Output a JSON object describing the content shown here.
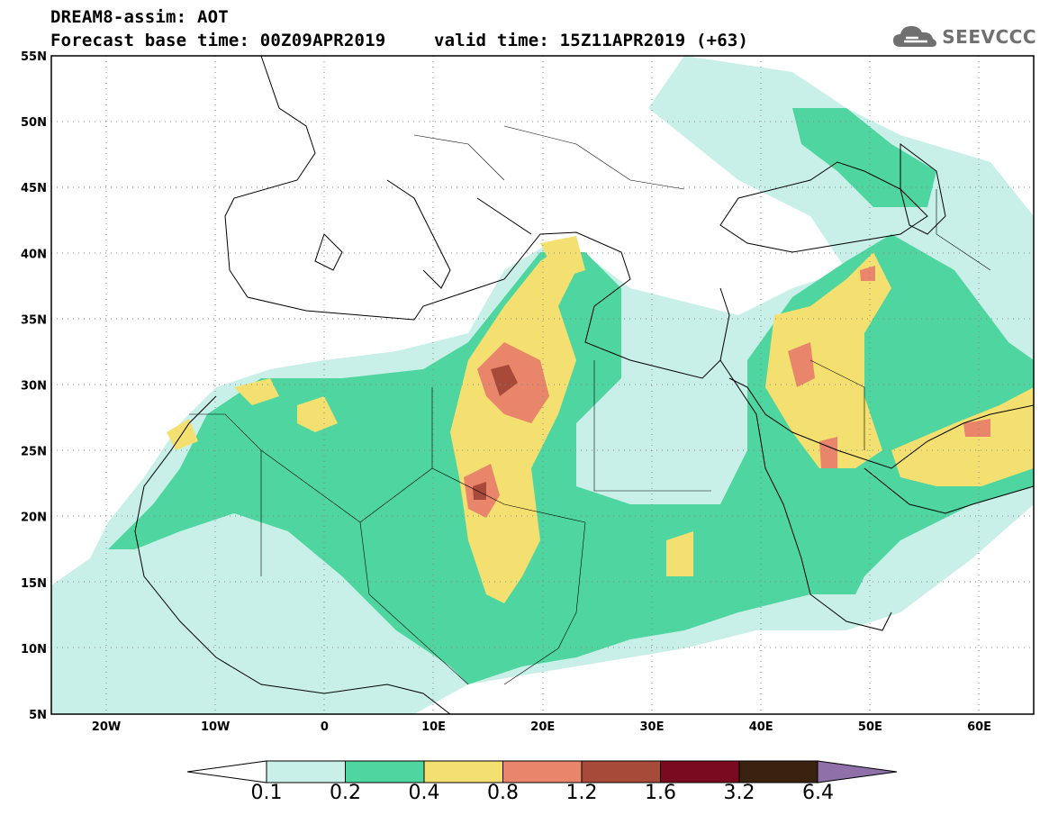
{
  "title": {
    "line1": "DREAM8-assim: AOT",
    "line2": "Forecast base time: 00Z09APR2019",
    "line2b": "valid time: 15Z11APR2019 (+63)"
  },
  "logo": {
    "text": "SEEVCCC",
    "icon": "cloud-icon"
  },
  "map": {
    "lon_range": [
      -25,
      65
    ],
    "lat_range": [
      5,
      55
    ],
    "lat_ticks": [
      "55N",
      "50N",
      "45N",
      "40N",
      "35N",
      "30N",
      "25N",
      "20N",
      "15N",
      "10N",
      "5N"
    ],
    "lon_ticks": [
      "20W",
      "10W",
      "0",
      "10E",
      "20E",
      "30E",
      "40E",
      "50E",
      "60E"
    ],
    "gridlines": "dotted"
  },
  "colorbar": {
    "labels": [
      "0.1",
      "0.2",
      "0.4",
      "0.8",
      "1.2",
      "1.6",
      "3.2",
      "6.4"
    ],
    "colors": [
      "#ffffff",
      "#c8f0e8",
      "#4fd6a0",
      "#f4e070",
      "#e8856a",
      "#a84a3a",
      "#7a0a20",
      "#3a2210",
      "#9070a8"
    ]
  }
}
